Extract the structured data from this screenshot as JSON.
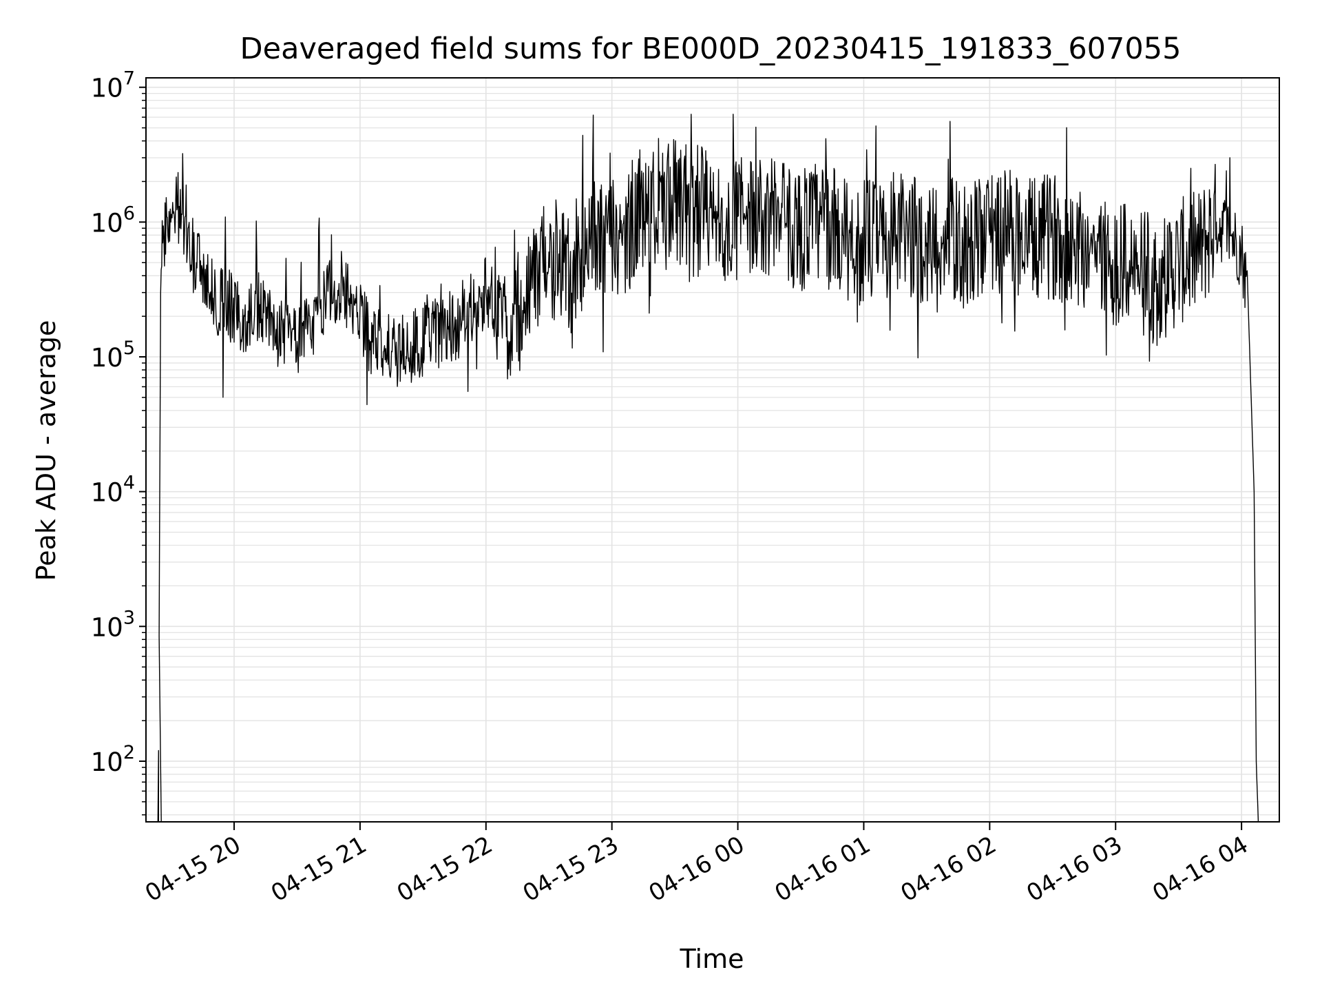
{
  "chart_data": {
    "type": "line",
    "title": "Deaveraged field sums for BE000D_20230415_191833_607055",
    "xlabel": "Time",
    "ylabel": "Peak ADU - average",
    "yscale": "log",
    "ylim_exponents": [
      1.55,
      7.07
    ],
    "xlim": [
      "2023-04-15 19:18",
      "2023-04-16 04:18"
    ],
    "grid": true,
    "x_tick_labels": [
      "04-15 20",
      "04-15 21",
      "04-15 22",
      "04-15 23",
      "04-16 00",
      "04-16 01",
      "04-16 02",
      "04-16 03",
      "04-16 04"
    ],
    "x_tick_times": [
      "2023-04-15 20:00",
      "2023-04-15 21:00",
      "2023-04-15 22:00",
      "2023-04-15 23:00",
      "2023-04-16 00:00",
      "2023-04-16 01:00",
      "2023-04-16 02:00",
      "2023-04-16 03:00",
      "2023-04-16 04:00"
    ],
    "y_tick_base": "10",
    "y_tick_exponents": [
      "2",
      "3",
      "4",
      "5",
      "6",
      "7"
    ],
    "series": [
      {
        "color": "#000000",
        "points": [
          [
            "2023-04-15 19:24",
            120
          ],
          [
            "2023-04-15 19:25",
            300000
          ],
          [
            "2023-04-15 19:26",
            700000
          ],
          [
            "2023-04-15 19:29",
            1200000
          ],
          [
            "2023-04-15 19:33",
            1300000
          ],
          [
            "2023-04-15 19:38",
            900000
          ],
          [
            "2023-04-15 19:42",
            500000
          ],
          [
            "2023-04-15 19:48",
            300000
          ],
          [
            "2023-04-15 19:55",
            250000
          ],
          [
            "2023-04-15 20:05",
            200000
          ],
          [
            "2023-04-15 20:15",
            250000
          ],
          [
            "2023-04-15 20:20",
            160000
          ],
          [
            "2023-04-15 20:30",
            130000
          ],
          [
            "2023-04-15 20:40",
            220000
          ],
          [
            "2023-04-15 20:50",
            350000
          ],
          [
            "2023-04-15 20:58",
            250000
          ],
          [
            "2023-04-15 21:05",
            130000
          ],
          [
            "2023-04-15 21:15",
            110000
          ],
          [
            "2023-04-15 21:25",
            120000
          ],
          [
            "2023-04-15 21:35",
            150000
          ],
          [
            "2023-04-15 21:45",
            170000
          ],
          [
            "2023-04-15 21:55",
            250000
          ],
          [
            "2023-04-15 22:00",
            300000
          ],
          [
            "2023-04-15 22:10",
            200000
          ],
          [
            "2023-04-15 22:20",
            250000
          ],
          [
            "2023-04-15 22:30",
            600000
          ],
          [
            "2023-04-15 22:40",
            400000
          ],
          [
            "2023-04-15 22:50",
            900000
          ],
          [
            "2023-04-15 23:00",
            700000
          ],
          [
            "2023-04-15 23:10",
            1000000
          ],
          [
            "2023-04-15 23:20",
            1200000
          ],
          [
            "2023-04-15 23:30",
            1400000
          ],
          [
            "2023-04-15 23:40",
            1300000
          ],
          [
            "2023-04-15 23:50",
            1200000
          ],
          [
            "2023-04-16 00:00",
            1100000
          ],
          [
            "2023-04-16 00:10",
            1200000
          ],
          [
            "2023-04-16 00:20",
            1000000
          ],
          [
            "2023-04-16 00:30",
            900000
          ],
          [
            "2023-04-16 00:40",
            1000000
          ],
          [
            "2023-04-16 00:50",
            800000
          ],
          [
            "2023-04-16 01:00",
            700000
          ],
          [
            "2023-04-16 01:10",
            800000
          ],
          [
            "2023-04-16 01:20",
            800000
          ],
          [
            "2023-04-16 01:30",
            700000
          ],
          [
            "2023-04-16 01:40",
            750000
          ],
          [
            "2023-04-16 01:50",
            650000
          ],
          [
            "2023-04-16 02:00",
            800000
          ],
          [
            "2023-04-16 02:10",
            900000
          ],
          [
            "2023-04-16 02:20",
            700000
          ],
          [
            "2023-04-16 02:30",
            800000
          ],
          [
            "2023-04-16 02:40",
            700000
          ],
          [
            "2023-04-16 02:50",
            600000
          ],
          [
            "2023-04-16 03:00",
            500000
          ],
          [
            "2023-04-16 03:10",
            450000
          ],
          [
            "2023-04-16 03:20",
            350000
          ],
          [
            "2023-04-16 03:30",
            500000
          ],
          [
            "2023-04-16 03:40",
            600000
          ],
          [
            "2023-04-16 03:48",
            1000000
          ],
          [
            "2023-04-16 03:55",
            800000
          ],
          [
            "2023-04-16 04:00",
            600000
          ],
          [
            "2023-04-16 04:03",
            300000
          ],
          [
            "2023-04-16 04:06",
            10000
          ],
          [
            "2023-04-16 04:07",
            100
          ],
          [
            "2023-04-16 04:08",
            35
          ]
        ]
      }
    ]
  }
}
